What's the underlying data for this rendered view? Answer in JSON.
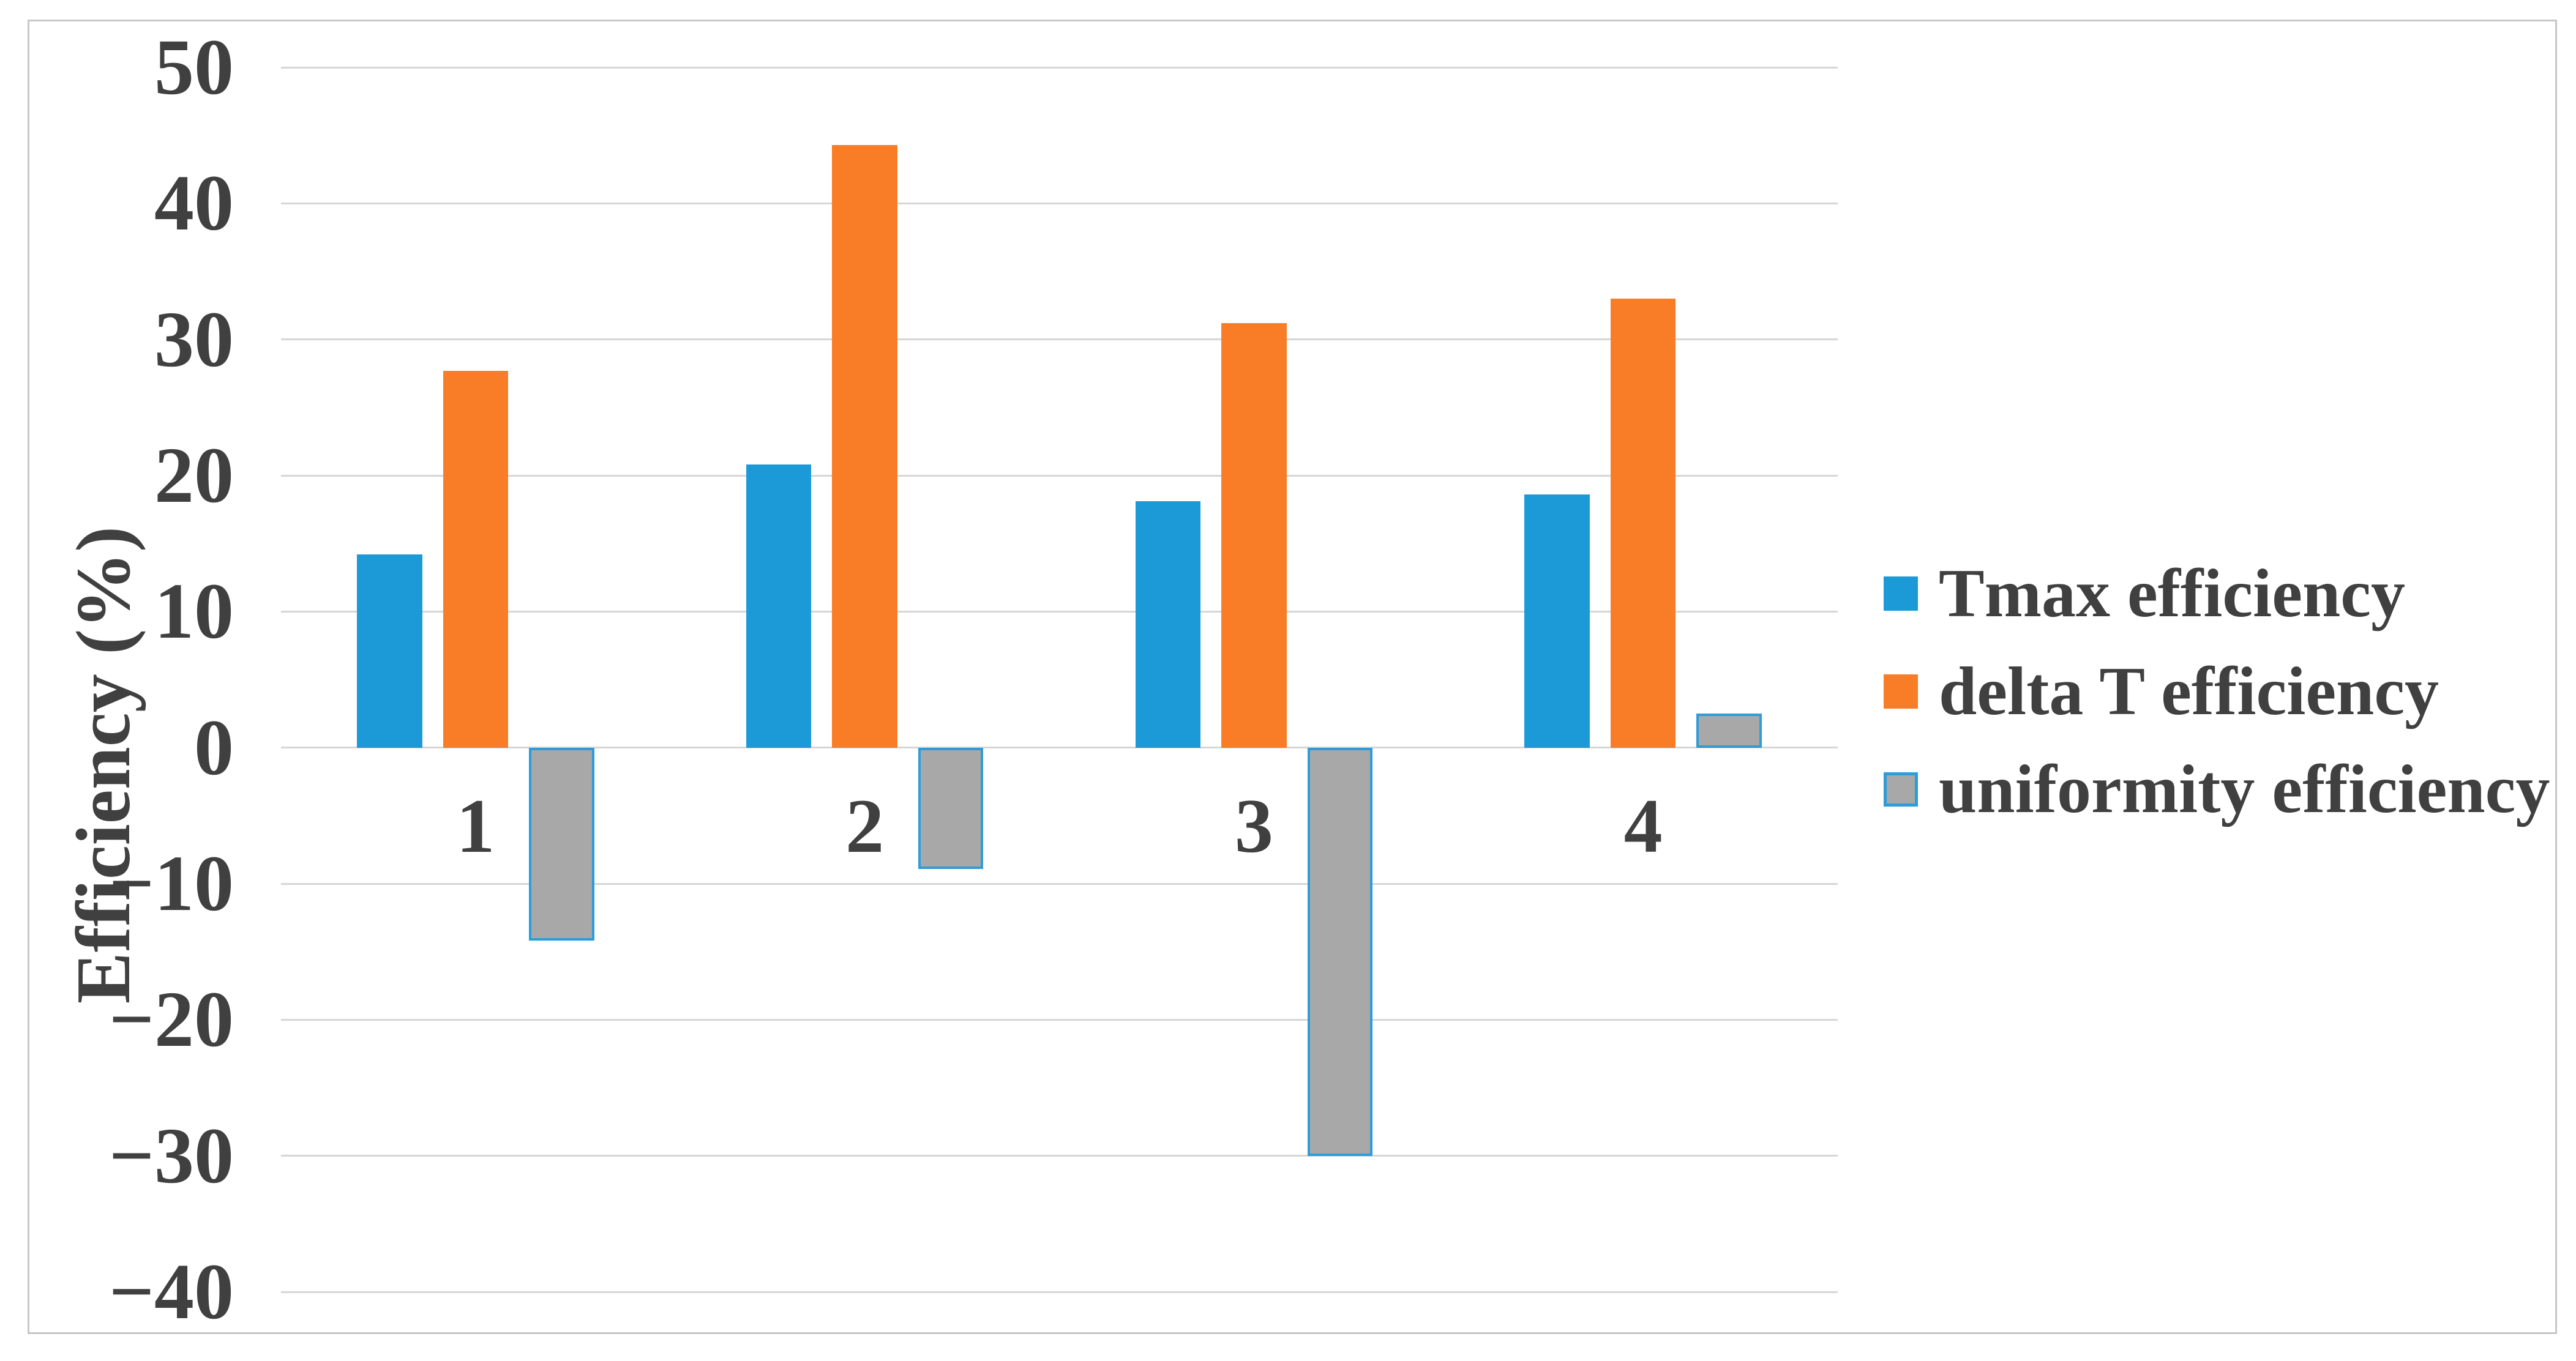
{
  "chart_data": {
    "type": "bar",
    "title": "",
    "xlabel": "",
    "ylabel": "Efficiency (%)",
    "categories": [
      "1",
      "2",
      "3",
      "4"
    ],
    "series": [
      {
        "name": "Tmax efficiency",
        "color": "#1b9ad7",
        "values": [
          14.2,
          20.8,
          18.1,
          18.6
        ]
      },
      {
        "name": "delta T efficiency",
        "color": "#f97d27",
        "values": [
          27.7,
          44.3,
          31.2,
          33.0
        ]
      },
      {
        "name": "uniformity efficiency",
        "color": "#a8a8a8",
        "border_color": "#2e9cd9",
        "values": [
          -14.2,
          -8.9,
          -30.0,
          2.5
        ]
      }
    ],
    "ylim": [
      -40,
      50
    ],
    "ytick_step": 10,
    "yticks": [
      50,
      40,
      30,
      20,
      10,
      0,
      -10,
      -20,
      -30,
      -40
    ],
    "ytick_labels": [
      "50",
      "40",
      "30",
      "20",
      "10",
      "0",
      "−10",
      "−20",
      "−30",
      "−40"
    ],
    "grid": true,
    "legend_position": "right",
    "colors": {
      "gridline": "#d6d6d6",
      "text": "#404040",
      "figure_border": "#c7c7c7",
      "background": "#ffffff"
    }
  }
}
